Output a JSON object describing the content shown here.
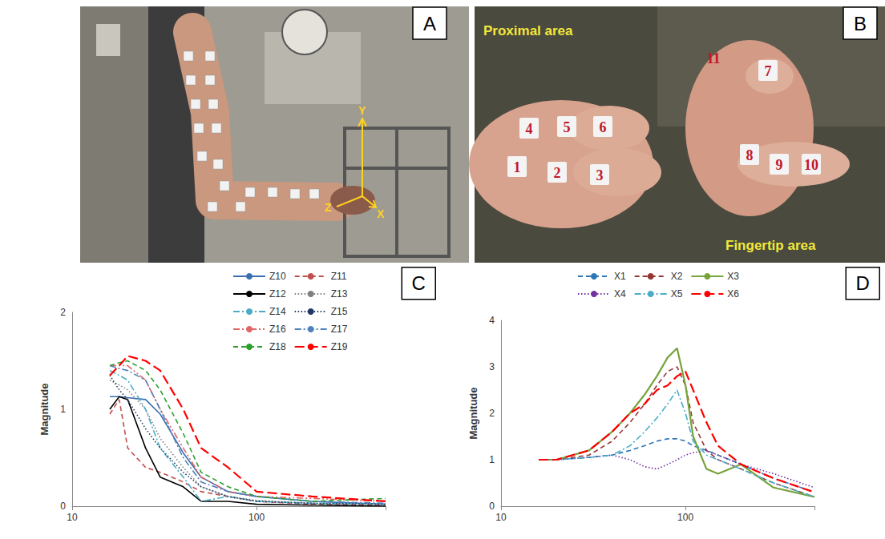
{
  "panels": {
    "A": {
      "panel": "A",
      "axis_labels": {
        "y": "Y",
        "z": "Z",
        "x": "X"
      }
    },
    "B": {
      "panel": "B",
      "area_labels": [
        "Proximal area",
        "Fingertip area"
      ],
      "markers": [
        "1",
        "2",
        "3",
        "4",
        "5",
        "6",
        "7",
        "8",
        "9",
        "10",
        "11"
      ]
    }
  },
  "chart_data": [
    {
      "panel": "C",
      "type": "line",
      "y_label": "Magnitude",
      "log": "x",
      "grid": false,
      "legend": "top",
      "x": [
        16,
        18,
        20,
        25,
        30,
        40,
        50,
        70,
        100,
        200,
        500
      ],
      "xlim": [
        10,
        500
      ],
      "xticks": [
        10,
        100
      ],
      "ylim": [
        0,
        2
      ],
      "yticks": [
        0,
        1,
        2
      ],
      "series": [
        {
          "name": "Z10",
          "color": "#3a6fb0",
          "line_style": "solid",
          "values": [
            1.13,
            1.13,
            1.12,
            1.1,
            0.95,
            0.55,
            0.3,
            0.15,
            0.1,
            0.05,
            0.02
          ]
        },
        {
          "name": "Z11",
          "color": "#c0504d",
          "line_style": "dashed",
          "values": [
            0.95,
            1.1,
            0.6,
            0.4,
            0.35,
            0.25,
            0.15,
            0.1,
            0.05,
            0.02,
            0.01
          ]
        },
        {
          "name": "Z12",
          "color": "#000000",
          "line_style": "solid",
          "values": [
            1.0,
            1.13,
            1.1,
            0.6,
            0.3,
            0.2,
            0.05,
            0.05,
            0.02,
            0.01,
            0.0
          ]
        },
        {
          "name": "Z13",
          "color": "#7f7f7f",
          "line_style": "dotted",
          "values": [
            1.3,
            1.25,
            1.2,
            1.0,
            0.7,
            0.4,
            0.2,
            0.1,
            0.06,
            0.03,
            0.02
          ]
        },
        {
          "name": "Z14",
          "color": "#4bacc6",
          "line_style": "dashdot",
          "values": [
            1.4,
            1.35,
            1.3,
            1.0,
            0.6,
            0.3,
            0.05,
            0.1,
            0.05,
            0.03,
            0.02
          ]
        },
        {
          "name": "Z15",
          "color": "#1f3864",
          "line_style": "dotted",
          "values": [
            1.35,
            1.2,
            1.1,
            0.8,
            0.6,
            0.35,
            0.2,
            0.1,
            0.05,
            0.03,
            0.02
          ]
        },
        {
          "name": "Z16",
          "color": "#e06666",
          "line_style": "dashdotdot",
          "values": [
            1.45,
            1.45,
            1.45,
            1.3,
            1.0,
            0.6,
            0.3,
            0.15,
            0.1,
            0.08,
            0.05
          ]
        },
        {
          "name": "Z17",
          "color": "#4f81bd",
          "line_style": "dashdot",
          "values": [
            1.45,
            1.42,
            1.4,
            1.3,
            1.0,
            0.5,
            0.25,
            0.15,
            0.1,
            0.05,
            0.03
          ]
        },
        {
          "name": "Z18",
          "color": "#2ca02c",
          "line_style": "dashed",
          "values": [
            1.45,
            1.48,
            1.5,
            1.4,
            1.2,
            0.75,
            0.35,
            0.2,
            0.1,
            0.05,
            0.08
          ]
        },
        {
          "name": "Z19",
          "color": "#ff0000",
          "line_style": "longdash",
          "values": [
            1.35,
            1.45,
            1.55,
            1.5,
            1.4,
            1.0,
            0.6,
            0.4,
            0.15,
            0.1,
            0.05
          ]
        }
      ]
    },
    {
      "panel": "D",
      "type": "line",
      "y_label": "Magnitude",
      "log": "x",
      "grid": false,
      "legend": "top",
      "x": [
        16,
        20,
        30,
        40,
        50,
        60,
        70,
        80,
        90,
        100,
        110,
        130,
        150,
        200,
        300,
        500
      ],
      "xlim": [
        10,
        500
      ],
      "xticks": [
        10,
        100
      ],
      "ylim": [
        0,
        4
      ],
      "yticks": [
        0,
        1,
        2,
        3,
        4
      ],
      "series": [
        {
          "name": "X1",
          "color": "#2e75b6",
          "line_style": "dashed",
          "values": [
            1,
            1,
            1.05,
            1.1,
            1.2,
            1.3,
            1.4,
            1.45,
            1.45,
            1.4,
            1.3,
            1.2,
            1.1,
            0.9,
            0.6,
            0.3
          ]
        },
        {
          "name": "X2",
          "color": "#943634",
          "line_style": "dashed",
          "values": [
            1,
            1,
            1.1,
            1.4,
            1.8,
            2.2,
            2.6,
            2.9,
            3.0,
            2.6,
            1.8,
            1.2,
            1.0,
            0.8,
            0.5,
            0.2
          ]
        },
        {
          "name": "X3",
          "color": "#77a33b",
          "line_style": "solid",
          "values": [
            1,
            1,
            1.2,
            1.6,
            2.0,
            2.4,
            2.8,
            3.2,
            3.4,
            2.6,
            1.5,
            0.8,
            0.7,
            0.9,
            0.4,
            0.2
          ]
        },
        {
          "name": "X4",
          "color": "#7030a0",
          "line_style": "dotted",
          "values": [
            1,
            1,
            1.05,
            1.1,
            1.0,
            0.85,
            0.8,
            0.9,
            1.0,
            1.1,
            1.15,
            1.2,
            1.1,
            0.9,
            0.7,
            0.4
          ]
        },
        {
          "name": "X5",
          "color": "#4bacc6",
          "line_style": "dashdot",
          "values": [
            1,
            1,
            1.05,
            1.1,
            1.3,
            1.6,
            1.9,
            2.2,
            2.5,
            2.0,
            1.4,
            1.1,
            1.0,
            0.8,
            0.5,
            0.2
          ]
        },
        {
          "name": "X6",
          "color": "#ff0000",
          "line_style": "longdash",
          "values": [
            1,
            1,
            1.2,
            1.6,
            2.0,
            2.2,
            2.5,
            2.6,
            2.8,
            2.9,
            2.5,
            1.8,
            1.3,
            0.9,
            0.6,
            0.3
          ]
        }
      ]
    }
  ]
}
